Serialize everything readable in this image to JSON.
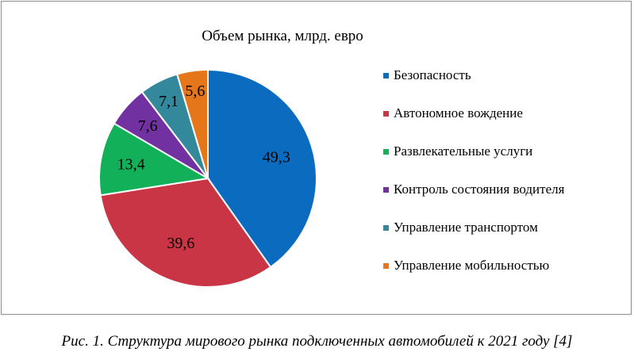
{
  "chart_data": {
    "type": "pie",
    "title": "Объем рынка, млрд. евро",
    "categories": [
      "Безопасность",
      "Автономное вождение",
      "Развлекательные услуги",
      "Контроль состояния водителя",
      "Управление транспортом",
      "Управление мобильностью"
    ],
    "values": [
      49.3,
      39.6,
      13.4,
      7.6,
      7.1,
      5.6
    ],
    "labels": [
      "49,3",
      "39,6",
      "13,4",
      "7,6",
      "7,1",
      "5,6"
    ],
    "colors": [
      "#0b6cbf",
      "#c93545",
      "#13b05a",
      "#7131a0",
      "#33899b",
      "#e5761a"
    ],
    "legend_position": "right"
  },
  "caption": "Рис. 1. Структура мирового рынка подключенных автомобилей к 2021 году [4]"
}
